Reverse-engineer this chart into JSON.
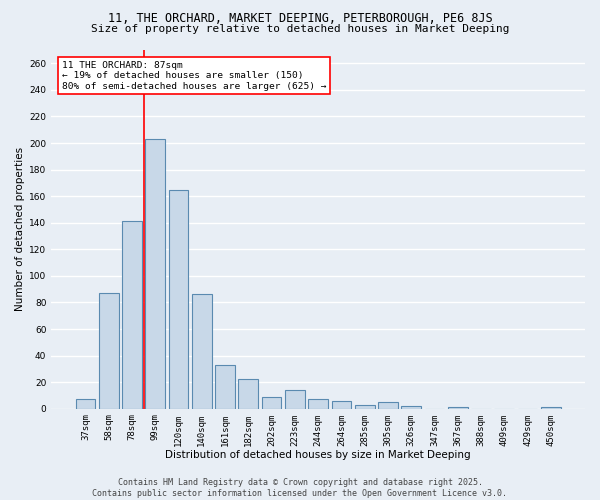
{
  "title_line1": "11, THE ORCHARD, MARKET DEEPING, PETERBOROUGH, PE6 8JS",
  "title_line2": "Size of property relative to detached houses in Market Deeping",
  "xlabel": "Distribution of detached houses by size in Market Deeping",
  "ylabel": "Number of detached properties",
  "categories": [
    "37sqm",
    "58sqm",
    "78sqm",
    "99sqm",
    "120sqm",
    "140sqm",
    "161sqm",
    "182sqm",
    "202sqm",
    "223sqm",
    "244sqm",
    "264sqm",
    "285sqm",
    "305sqm",
    "326sqm",
    "347sqm",
    "367sqm",
    "388sqm",
    "409sqm",
    "429sqm",
    "450sqm"
  ],
  "values": [
    7,
    87,
    141,
    203,
    165,
    86,
    33,
    22,
    9,
    14,
    7,
    6,
    3,
    5,
    2,
    0,
    1,
    0,
    0,
    0,
    1
  ],
  "bar_color": "#c8d8e8",
  "bar_edge_color": "#5a8ab0",
  "bar_edge_width": 0.8,
  "annotation_text_line1": "11 THE ORCHARD: 87sqm",
  "annotation_text_line2": "← 19% of detached houses are smaller (150)",
  "annotation_text_line3": "80% of semi-detached houses are larger (625) →",
  "annotation_box_color": "white",
  "annotation_box_edge_color": "red",
  "vline_color": "red",
  "vline_x": 2.5,
  "ylim": [
    0,
    270
  ],
  "yticks": [
    0,
    20,
    40,
    60,
    80,
    100,
    120,
    140,
    160,
    180,
    200,
    220,
    240,
    260
  ],
  "background_color": "#e8eef5",
  "grid_color": "white",
  "footer_line1": "Contains HM Land Registry data © Crown copyright and database right 2025.",
  "footer_line2": "Contains public sector information licensed under the Open Government Licence v3.0.",
  "title_fontsize": 8.5,
  "subtitle_fontsize": 8,
  "axis_label_fontsize": 7.5,
  "tick_fontsize": 6.5,
  "annotation_fontsize": 6.8,
  "footer_fontsize": 6
}
